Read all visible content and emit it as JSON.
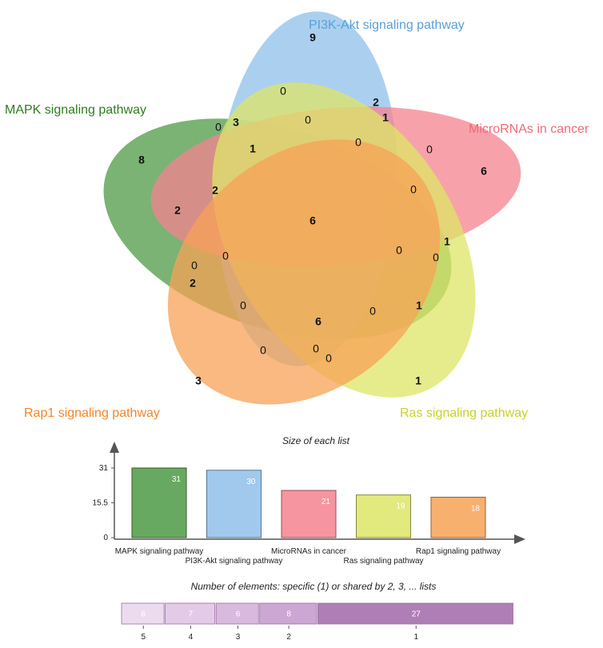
{
  "sets": [
    {
      "name": "MAPK signaling pathway",
      "color": "#4e9a45",
      "label_color": "#2e7d1e"
    },
    {
      "name": "PI3K-Akt signaling pathway",
      "color": "#8fc0ea",
      "label_color": "#5a9fd8"
    },
    {
      "name": "MicroRNAs in cancer",
      "color": "#f4838f",
      "label_color": "#f06a78"
    },
    {
      "name": "Ras signaling pathway",
      "color": "#dde566",
      "label_color": "#c9d12a"
    },
    {
      "name": "Rap1 signaling pathway",
      "color": "#f7a255",
      "label_color": "#f2862a"
    }
  ],
  "venn_counts": [
    {
      "value": "9",
      "bold": true
    },
    {
      "value": "8",
      "bold": true
    },
    {
      "value": "6",
      "bold": true
    },
    {
      "value": "3",
      "bold": true
    },
    {
      "value": "1",
      "bold": true
    },
    {
      "value": "0",
      "bold": false
    },
    {
      "value": "3",
      "bold": true
    },
    {
      "value": "2",
      "bold": true
    },
    {
      "value": "1",
      "bold": true
    },
    {
      "value": "0",
      "bold": false
    },
    {
      "value": "0",
      "bold": false
    },
    {
      "value": "1",
      "bold": true
    },
    {
      "value": "0",
      "bold": false
    },
    {
      "value": "0",
      "bold": false
    },
    {
      "value": "0",
      "bold": false
    },
    {
      "value": "1",
      "bold": true
    },
    {
      "value": "0",
      "bold": false
    },
    {
      "value": "2",
      "bold": true
    },
    {
      "value": "2",
      "bold": true
    },
    {
      "value": "6",
      "bold": true
    },
    {
      "value": "0",
      "bold": false
    },
    {
      "value": "0",
      "bold": false
    },
    {
      "value": "2",
      "bold": true
    },
    {
      "value": "0",
      "bold": false
    },
    {
      "value": "1",
      "bold": true
    },
    {
      "value": "0",
      "bold": false
    },
    {
      "value": "6",
      "bold": true
    },
    {
      "value": "0",
      "bold": false
    },
    {
      "value": "0",
      "bold": false
    },
    {
      "value": "0",
      "bold": false
    },
    {
      "value": "0",
      "bold": false
    }
  ],
  "chart_data": [
    {
      "type": "bar",
      "title": "Size of each list",
      "categories": [
        "MAPK signaling pathway",
        "PI3K-Akt signaling pathway",
        "MicroRNAs in cancer",
        "Ras signaling pathway",
        "Rap1 signaling pathway"
      ],
      "values": [
        31,
        30,
        21,
        19,
        18
      ],
      "colors": [
        "#4e9a45",
        "#8fc0ea",
        "#f4838f",
        "#dde566",
        "#f7a255"
      ],
      "yticks": [
        "0",
        "15.5",
        "31"
      ],
      "ylim": [
        0,
        31
      ]
    },
    {
      "type": "bar",
      "orientation": "horizontal-stacked",
      "title": "Number of elements: specific (1) or shared by 2, 3, ... lists",
      "categories": [
        "5",
        "4",
        "3",
        "2",
        "1"
      ],
      "values": [
        6,
        7,
        6,
        8,
        27
      ],
      "colors": [
        "#ecdbef",
        "#e3cbe7",
        "#d9b9de",
        "#cda7d3",
        "#b07eb7"
      ]
    }
  ]
}
